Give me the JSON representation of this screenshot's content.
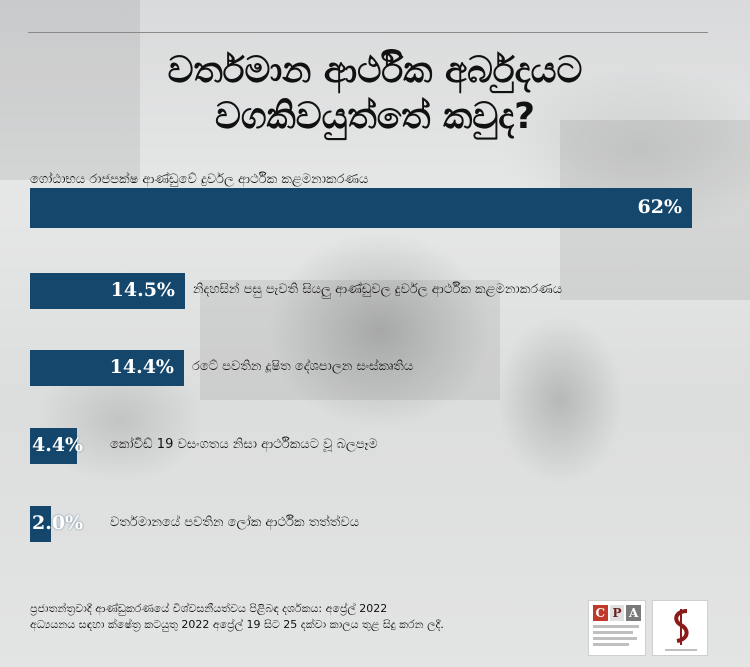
{
  "title": {
    "line1": "වර්තමාන ආර්ථික අර්බුදයට",
    "line2": "වගකිවයුත්තේ කවුද?"
  },
  "chart_data": {
    "type": "bar",
    "orientation": "horizontal",
    "categories": [
      "ගෝඨාභය රාජපක්ෂ ආණ්ඩුවේ දුර්වල ආර්ථික කළමනාකරණය",
      "නිදහසින් පසු පැවති සියලු ආණ්ඩුවල දුර්වල ආර්ථික කළමනාකරණය",
      "රටේ පවතින දූෂිත දේශපාලන සංස්කෘතිය",
      "කෝවිඩ් 19 වසංගතය නිසා ආර්ථිකයට වූ බලපෑම",
      "වර්තමානයේ පවතින ලෝක ආර්ථික තත්ත්වය"
    ],
    "values": [
      62,
      14.5,
      14.4,
      4.4,
      2.0
    ],
    "value_labels": [
      "62%",
      "14.5%",
      "14.4%",
      "4.4%",
      "2.0%"
    ],
    "bar_color": "#14476b",
    "xlim": [
      0,
      62
    ],
    "grid": false,
    "legend": "none"
  },
  "footer": {
    "line1": "ප්‍රජාතන්ත්‍රවාදී ආණ්ඩුකරණයේ විශ්වසනීයත්වය පිළිබඳ දර්ශකය: අප්‍රේල් 2022",
    "line2": "අධ්‍යයනය සඳහා ක්ෂේත්‍ර කටයුතු 2022 අප්‍රේල් 19 සිට 25 දක්වා කාලය තුළ සිදු කරන ලදී."
  },
  "logos": {
    "cpa_letters": [
      "C",
      "P",
      "A"
    ],
    "cpa_colors": [
      "#c0392b",
      "#e0e0e0",
      "#7a7a7a"
    ],
    "ss_mark_color": "#8b1a1a"
  }
}
